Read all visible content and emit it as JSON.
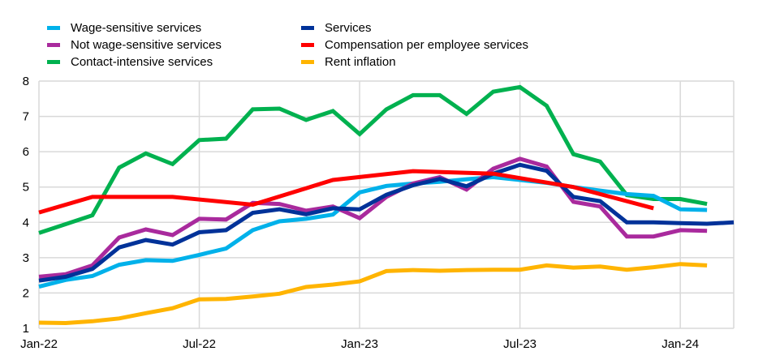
{
  "chart_data": {
    "type": "line",
    "title": "",
    "xlabel": "",
    "ylabel": "",
    "ylim": [
      1,
      8
    ],
    "yticks": [
      1,
      2,
      3,
      4,
      5,
      6,
      7,
      8
    ],
    "x_range_months": [
      0,
      26
    ],
    "xticks": [
      {
        "label": "Jan-22",
        "month": 0
      },
      {
        "label": "Jul-22",
        "month": 6
      },
      {
        "label": "Jan-23",
        "month": 12
      },
      {
        "label": "Jul-23",
        "month": 18
      },
      {
        "label": "Jan-24",
        "month": 24
      }
    ],
    "grid": true,
    "legend_placement": "top",
    "series": [
      {
        "name": "Wage-sensitive services",
        "color": "#00B1EA",
        "months": [
          0,
          1,
          2,
          3,
          4,
          5,
          6,
          7,
          8,
          9,
          10,
          11,
          12,
          13,
          14,
          15,
          16,
          17,
          18,
          19,
          20,
          21,
          22,
          23,
          24,
          25
        ],
        "values": [
          2.18,
          2.37,
          2.48,
          2.8,
          2.93,
          2.91,
          3.08,
          3.26,
          3.78,
          4.03,
          4.1,
          4.22,
          4.85,
          5.03,
          5.1,
          5.15,
          5.22,
          5.28,
          5.2,
          5.12,
          5.0,
          4.9,
          4.8,
          4.75,
          4.37,
          4.35
        ]
      },
      {
        "name": "Not wage-sensitive services",
        "color": "#A92A9D",
        "months": [
          0,
          1,
          2,
          3,
          4,
          5,
          6,
          7,
          8,
          9,
          10,
          11,
          12,
          13,
          14,
          15,
          16,
          17,
          18,
          19,
          20,
          21,
          22,
          23,
          24,
          25
        ],
        "values": [
          2.46,
          2.53,
          2.78,
          3.57,
          3.8,
          3.64,
          4.1,
          4.08,
          4.55,
          4.52,
          4.33,
          4.45,
          4.12,
          4.72,
          5.1,
          5.28,
          4.93,
          5.52,
          5.8,
          5.58,
          4.58,
          4.45,
          3.6,
          3.6,
          3.78,
          3.76
        ]
      },
      {
        "name": "Contact-intensive services",
        "color": "#00B14F",
        "months": [
          0,
          1,
          2,
          3,
          4,
          5,
          6,
          7,
          8,
          9,
          10,
          11,
          12,
          13,
          14,
          15,
          16,
          17,
          18,
          19,
          20,
          21,
          22,
          23,
          24,
          25
        ],
        "values": [
          3.7,
          3.95,
          4.2,
          5.55,
          5.95,
          5.65,
          6.33,
          6.37,
          7.2,
          7.22,
          6.9,
          7.15,
          6.5,
          7.2,
          7.6,
          7.6,
          7.07,
          7.7,
          7.83,
          7.3,
          5.93,
          5.72,
          4.77,
          4.66,
          4.66,
          4.52
        ]
      },
      {
        "name": "Services",
        "color": "#003299",
        "months": [
          0,
          1,
          2,
          3,
          4,
          5,
          6,
          7,
          8,
          9,
          10,
          11,
          12,
          13,
          14,
          15,
          16,
          17,
          18,
          19,
          20,
          21,
          22,
          23,
          24,
          25,
          26
        ],
        "values": [
          2.35,
          2.46,
          2.68,
          3.29,
          3.5,
          3.37,
          3.72,
          3.78,
          4.27,
          4.37,
          4.23,
          4.4,
          4.37,
          4.78,
          5.05,
          5.23,
          5.02,
          5.38,
          5.63,
          5.46,
          4.72,
          4.6,
          4.0,
          4.0,
          3.98,
          3.96,
          4.0
        ]
      },
      {
        "name": "Compensation per employee services",
        "color": "#FF0000",
        "months": [
          0,
          2,
          5,
          8,
          11,
          14,
          17,
          20,
          23
        ],
        "values": [
          4.28,
          4.72,
          4.72,
          4.5,
          5.2,
          5.45,
          5.38,
          5.0,
          4.4
        ]
      },
      {
        "name": "Rent inflation",
        "color": "#FFB400",
        "months": [
          0,
          1,
          2,
          3,
          4,
          5,
          6,
          7,
          8,
          9,
          10,
          11,
          12,
          13,
          14,
          15,
          16,
          17,
          18,
          19,
          20,
          21,
          22,
          23,
          24,
          25
        ],
        "values": [
          1.16,
          1.15,
          1.2,
          1.28,
          1.43,
          1.57,
          1.82,
          1.83,
          1.9,
          1.98,
          2.17,
          2.24,
          2.33,
          2.62,
          2.65,
          2.63,
          2.65,
          2.66,
          2.66,
          2.78,
          2.72,
          2.75,
          2.66,
          2.73,
          2.82,
          2.78
        ]
      }
    ]
  }
}
